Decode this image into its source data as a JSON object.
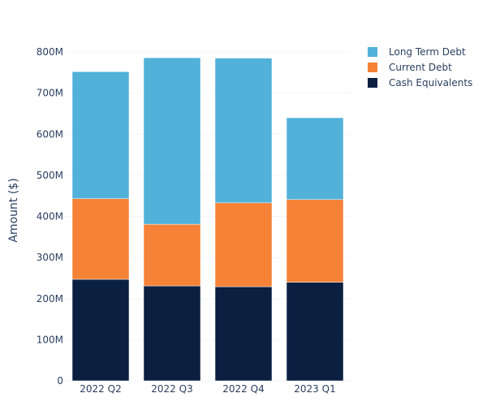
{
  "chart_data": {
    "type": "bar",
    "stacked": true,
    "title": "",
    "xlabel": "",
    "ylabel": "Amount ($)",
    "ylim": [
      0,
      800000000
    ],
    "yticks": [
      0,
      100000000,
      200000000,
      300000000,
      400000000,
      500000000,
      600000000,
      700000000,
      800000000
    ],
    "ytick_labels": [
      "0",
      "100M",
      "200M",
      "300M",
      "400M",
      "500M",
      "600M",
      "700M",
      "800M"
    ],
    "categories": [
      "2022 Q2",
      "2022 Q3",
      "2022 Q4",
      "2023 Q1"
    ],
    "series": [
      {
        "name": "Cash Equivalents",
        "color": "#0b1f41",
        "values": [
          247000000,
          231000000,
          229000000,
          240000000
        ]
      },
      {
        "name": "Current Debt",
        "color": "#f58236",
        "values": [
          196000000,
          150000000,
          204000000,
          201000000
        ]
      },
      {
        "name": "Long Term Debt",
        "color": "#52b1d9",
        "values": [
          309000000,
          405000000,
          352000000,
          199000000
        ]
      }
    ],
    "legend": {
      "position": "top-right",
      "order": [
        "Long Term Debt",
        "Current Debt",
        "Cash Equivalents"
      ]
    },
    "grid": true
  }
}
